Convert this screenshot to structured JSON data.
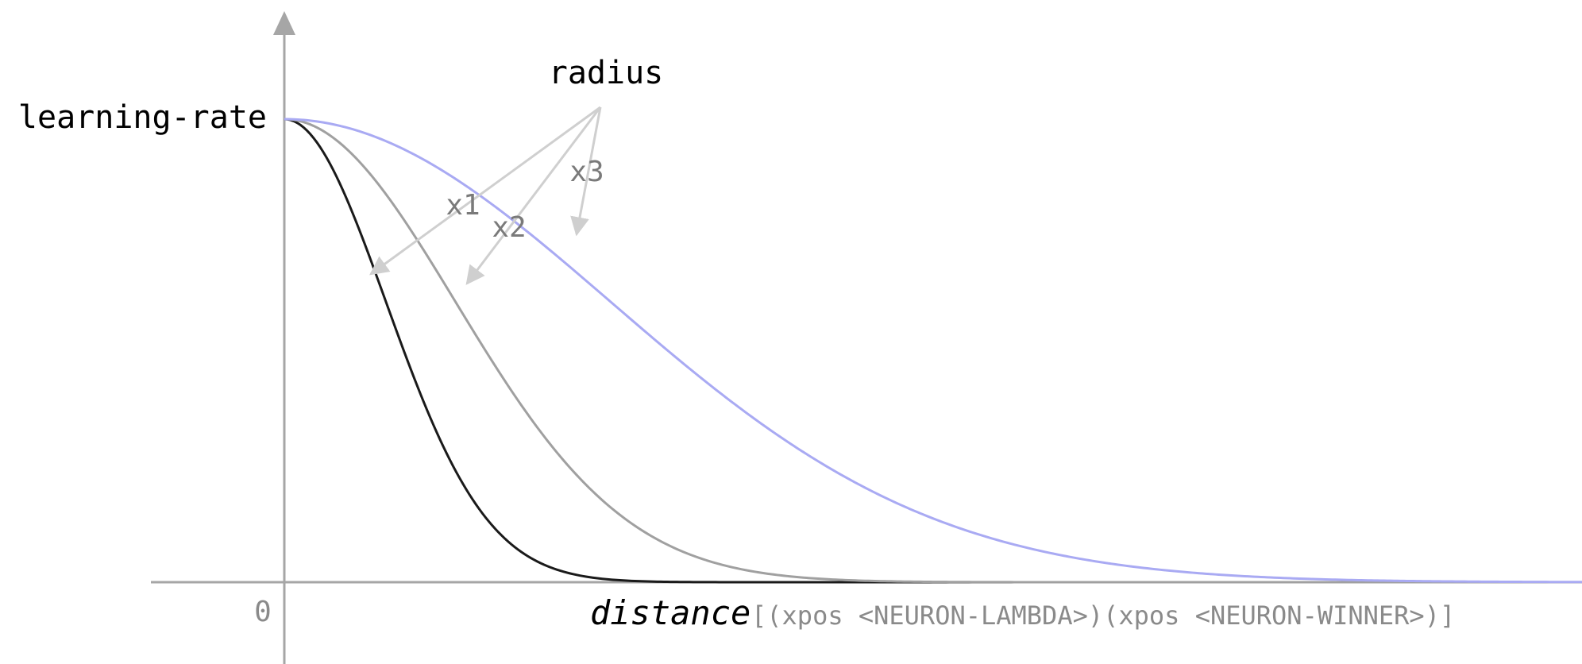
{
  "chart_data": {
    "type": "line",
    "title": "",
    "xlabel": "distance",
    "xlabel_detail": "[(xpos <NEURON-LAMBDA>)(xpos <NEURON-WINNER>)]",
    "ylabel": "learning-rate",
    "origin_label": "0",
    "annotation": {
      "label": "radius",
      "arrows": [
        "x1",
        "x2",
        "x3"
      ]
    },
    "xlim": [
      0,
      4.86
    ],
    "ylim": [
      0,
      1
    ],
    "grid": false,
    "legend": "none",
    "series": [
      {
        "radius_multiple": 1,
        "color": "#1a1a1a",
        "sigma": 0.38,
        "label": "x1"
      },
      {
        "radius_multiple": 2,
        "color": "#a0a0a0",
        "sigma": 0.64,
        "label": "x2"
      },
      {
        "radius_multiple": 3,
        "color": "#a9aaf3",
        "sigma": 1.22,
        "label": "x3"
      }
    ],
    "colors": {
      "axis": "#a6a6a6",
      "annotation_arrow": "#cfcfcf",
      "annotation_text": "#7a7a7a",
      "label_text": "#000000",
      "detail_text": "#8a8a8a"
    }
  }
}
